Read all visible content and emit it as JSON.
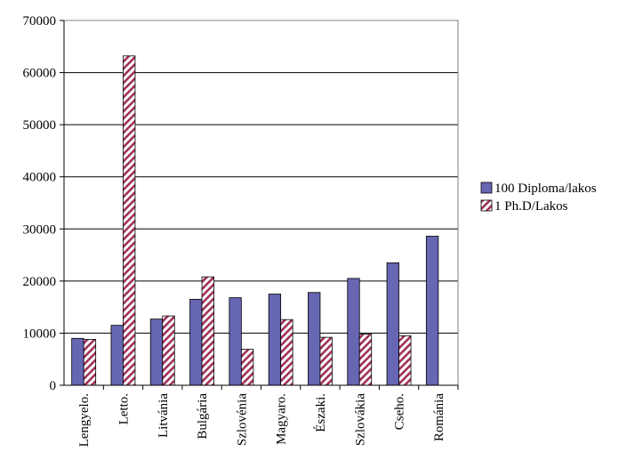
{
  "chart_data": {
    "type": "bar",
    "categories": [
      "Lengyelo.",
      "Letto.",
      "Litvánia",
      "Bulgária",
      "Szlovénia",
      "Magyaro.",
      "Északi.",
      "Szlovákia",
      "Cseho.",
      "Románia"
    ],
    "series": [
      {
        "name": "100 Diploma/lakos",
        "values": [
          9000,
          11500,
          12700,
          16500,
          16800,
          17500,
          17800,
          20500,
          23500,
          28600
        ],
        "color": "#6666b3",
        "pattern": "solid"
      },
      {
        "name": "1 Ph.D/Lakos",
        "values": [
          8800,
          63200,
          13300,
          20800,
          6900,
          12600,
          9200,
          9800,
          9500,
          null
        ],
        "color": "#a0325a",
        "pattern": "diagonal-stripes"
      }
    ],
    "ylim": [
      0,
      70000
    ],
    "yticks": [
      "0",
      "10000",
      "20000",
      "30000",
      "40000",
      "50000",
      "60000",
      "70000"
    ],
    "grid": true,
    "legend": "right",
    "title": "",
    "xlabel": "",
    "ylabel": ""
  }
}
